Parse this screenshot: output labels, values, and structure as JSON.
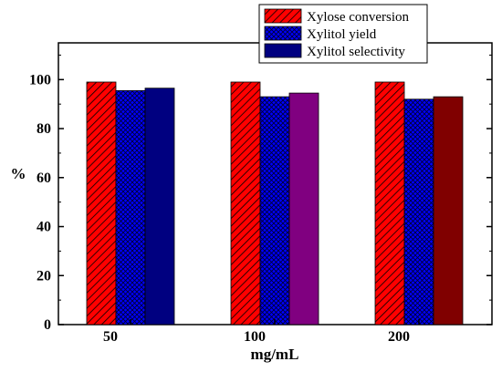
{
  "chart_data": {
    "type": "bar",
    "title": "",
    "xlabel": "mg/mL",
    "ylabel": "%",
    "categories": [
      "50",
      "100",
      "200"
    ],
    "ylim": [
      0,
      115
    ],
    "yticks": [
      0,
      20,
      40,
      60,
      80,
      100
    ],
    "grid": false,
    "legend_position": "top-right",
    "series": [
      {
        "name": "Xylose conversion",
        "values": [
          99,
          99,
          99
        ],
        "pattern": "diagonal-hatch",
        "colors": [
          "#ff0000",
          "#ff0000",
          "#ff0000"
        ]
      },
      {
        "name": "Xylitol yield",
        "values": [
          95.5,
          93,
          92
        ],
        "pattern": "crosshatch",
        "colors": [
          "#0000ff",
          "#0000ff",
          "#0000ff"
        ]
      },
      {
        "name": "Xylitol selectivity",
        "values": [
          96.5,
          94.5,
          93
        ],
        "pattern": "solid",
        "colors": [
          "#000080",
          "#800080",
          "#800000"
        ]
      }
    ]
  }
}
